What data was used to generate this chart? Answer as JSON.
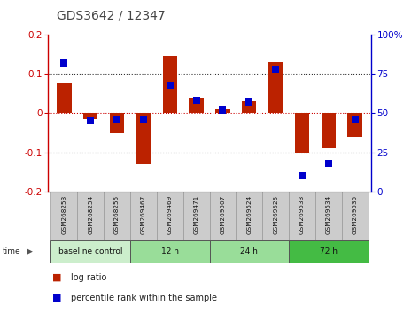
{
  "title": "GDS3642 / 12347",
  "samples": [
    "GSM268253",
    "GSM268254",
    "GSM268255",
    "GSM269467",
    "GSM269469",
    "GSM269471",
    "GSM269507",
    "GSM269524",
    "GSM269525",
    "GSM269533",
    "GSM269534",
    "GSM269535"
  ],
  "log_ratio": [
    0.075,
    -0.015,
    -0.05,
    -0.13,
    0.145,
    0.04,
    0.01,
    0.03,
    0.13,
    -0.1,
    -0.09,
    -0.06
  ],
  "percentile_rank": [
    82,
    45,
    46,
    46,
    68,
    58,
    52,
    57,
    78,
    10,
    18,
    46
  ],
  "bar_color": "#bb2200",
  "dot_color": "#0000cc",
  "ylim_left": [
    -0.2,
    0.2
  ],
  "ylim_right": [
    0,
    100
  ],
  "yticks_left": [
    -0.2,
    -0.1,
    0.0,
    0.1,
    0.2
  ],
  "yticks_right": [
    0,
    25,
    50,
    75,
    100
  ],
  "bar_width": 0.55,
  "dot_size": 30,
  "dot_marker": "s",
  "time_label": "time",
  "background_color": "#ffffff",
  "left_label_color": "#cc0000",
  "right_label_color": "#0000cc",
  "title_color": "#444444",
  "groups": [
    {
      "label": "baseline control",
      "start": 0,
      "end": 3,
      "color": "#cceecc"
    },
    {
      "label": "12 h",
      "start": 3,
      "end": 6,
      "color": "#99dd99"
    },
    {
      "label": "24 h",
      "start": 6,
      "end": 9,
      "color": "#99dd99"
    },
    {
      "label": "72 h",
      "start": 9,
      "end": 12,
      "color": "#44bb44"
    }
  ],
  "legend_bar_label": "log ratio",
  "legend_dot_label": "percentile rank within the sample",
  "hline_zero_color": "#cc0000",
  "hline_dotted_color": "#333333"
}
